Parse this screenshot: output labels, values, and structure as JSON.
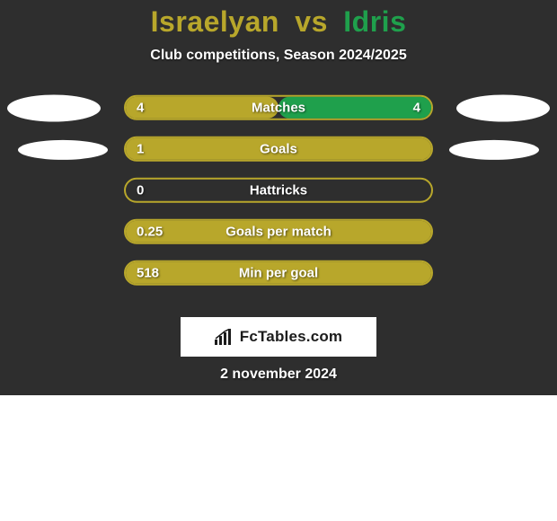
{
  "header": {
    "player1": "Israelyan",
    "vs": "vs",
    "player2": "Idris",
    "player1_color": "#b8a72b",
    "player2_color": "#1fa04c",
    "subtitle": "Club competitions, Season 2024/2025"
  },
  "style": {
    "card_bg": "#2e2e2e",
    "track_border": "#b8a72b",
    "track_bg": "#2e2e2e",
    "fill_left_color": "#b8a72b",
    "fill_right_color": "#1fa04c",
    "avatar_color": "#ffffff",
    "value_text_color": "#ffffff",
    "label_text_color": "#ffffff"
  },
  "rows": [
    {
      "label": "Matches",
      "left_value": "4",
      "right_value": "4",
      "left_pct": 50,
      "right_pct": 50,
      "show_avatars": "big"
    },
    {
      "label": "Goals",
      "left_value": "1",
      "right_value": "",
      "left_pct": 100,
      "right_pct": 0,
      "show_avatars": "small"
    },
    {
      "label": "Hattricks",
      "left_value": "0",
      "right_value": "",
      "left_pct": 0,
      "right_pct": 0,
      "show_avatars": "none"
    },
    {
      "label": "Goals per match",
      "left_value": "0.25",
      "right_value": "",
      "left_pct": 100,
      "right_pct": 0,
      "show_avatars": "none"
    },
    {
      "label": "Min per goal",
      "left_value": "518",
      "right_value": "",
      "left_pct": 100,
      "right_pct": 0,
      "show_avatars": "none"
    }
  ],
  "brand": {
    "text": "FcTables.com"
  },
  "date": "2 november 2024"
}
